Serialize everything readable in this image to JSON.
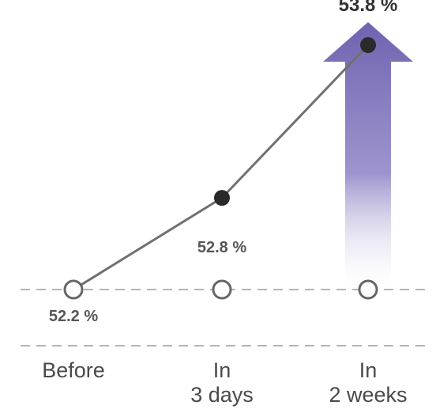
{
  "chart_data": {
    "type": "line",
    "categories": [
      "Before",
      "In 3 days",
      "In 2 weeks"
    ],
    "category_lines": [
      [
        "Before"
      ],
      [
        "In",
        "3 days"
      ],
      [
        "In",
        "2 weeks"
      ]
    ],
    "values": [
      52.2,
      52.8,
      53.8
    ],
    "value_labels": [
      "52.2 %",
      "52.8 %",
      "53.8 %"
    ],
    "ylim": [
      52.2,
      53.8
    ],
    "grid": false,
    "baseline": "dashed",
    "highlight": "upward arrow behind the last point",
    "colors": {
      "line": "#707070",
      "filled_marker": "#2a2a2a",
      "open_marker_stroke": "#666666",
      "dashed_line": "#b5b5b5",
      "arrow": "#6f62b0",
      "arrow_fade": "#ffffff"
    }
  }
}
